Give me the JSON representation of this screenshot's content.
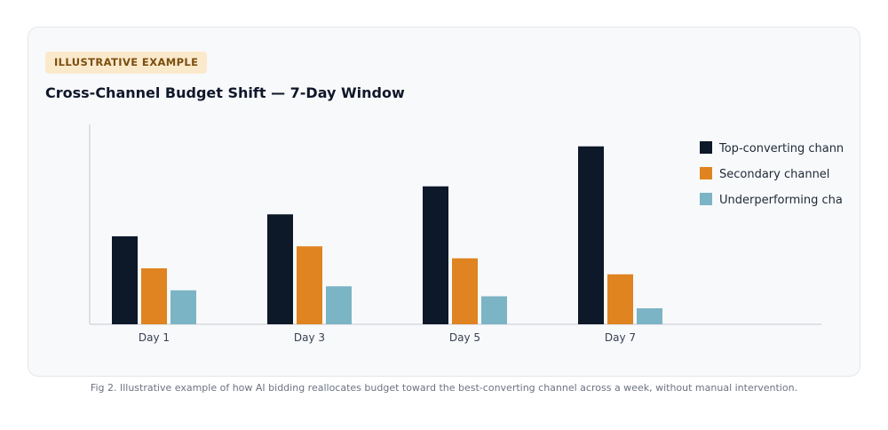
{
  "badge": "ILLUSTRATIVE EXAMPLE",
  "caption": "Fig 2. Illustrative example of how AI bidding reallocates budget toward the best-converting channel across a week, without manual intervention.",
  "chart_data": {
    "type": "bar",
    "title": "Cross-Channel Budget Shift — 7-Day Window",
    "xlabel": "",
    "ylabel": "",
    "ylim": [
      0,
      100
    ],
    "grid": false,
    "legend_position": "top-right",
    "categories": [
      "Day 1",
      "Day 3",
      "Day 5",
      "Day 7"
    ],
    "series": [
      {
        "name": "Top-converting channel",
        "color": "#0d1829",
        "values": [
          44,
          55,
          69,
          89
        ]
      },
      {
        "name": "Secondary channel",
        "color": "#df8420",
        "values": [
          28,
          39,
          33,
          25
        ]
      },
      {
        "name": "Underperforming channel",
        "color": "#7bb4c4",
        "values": [
          17,
          19,
          14,
          8
        ]
      }
    ]
  }
}
